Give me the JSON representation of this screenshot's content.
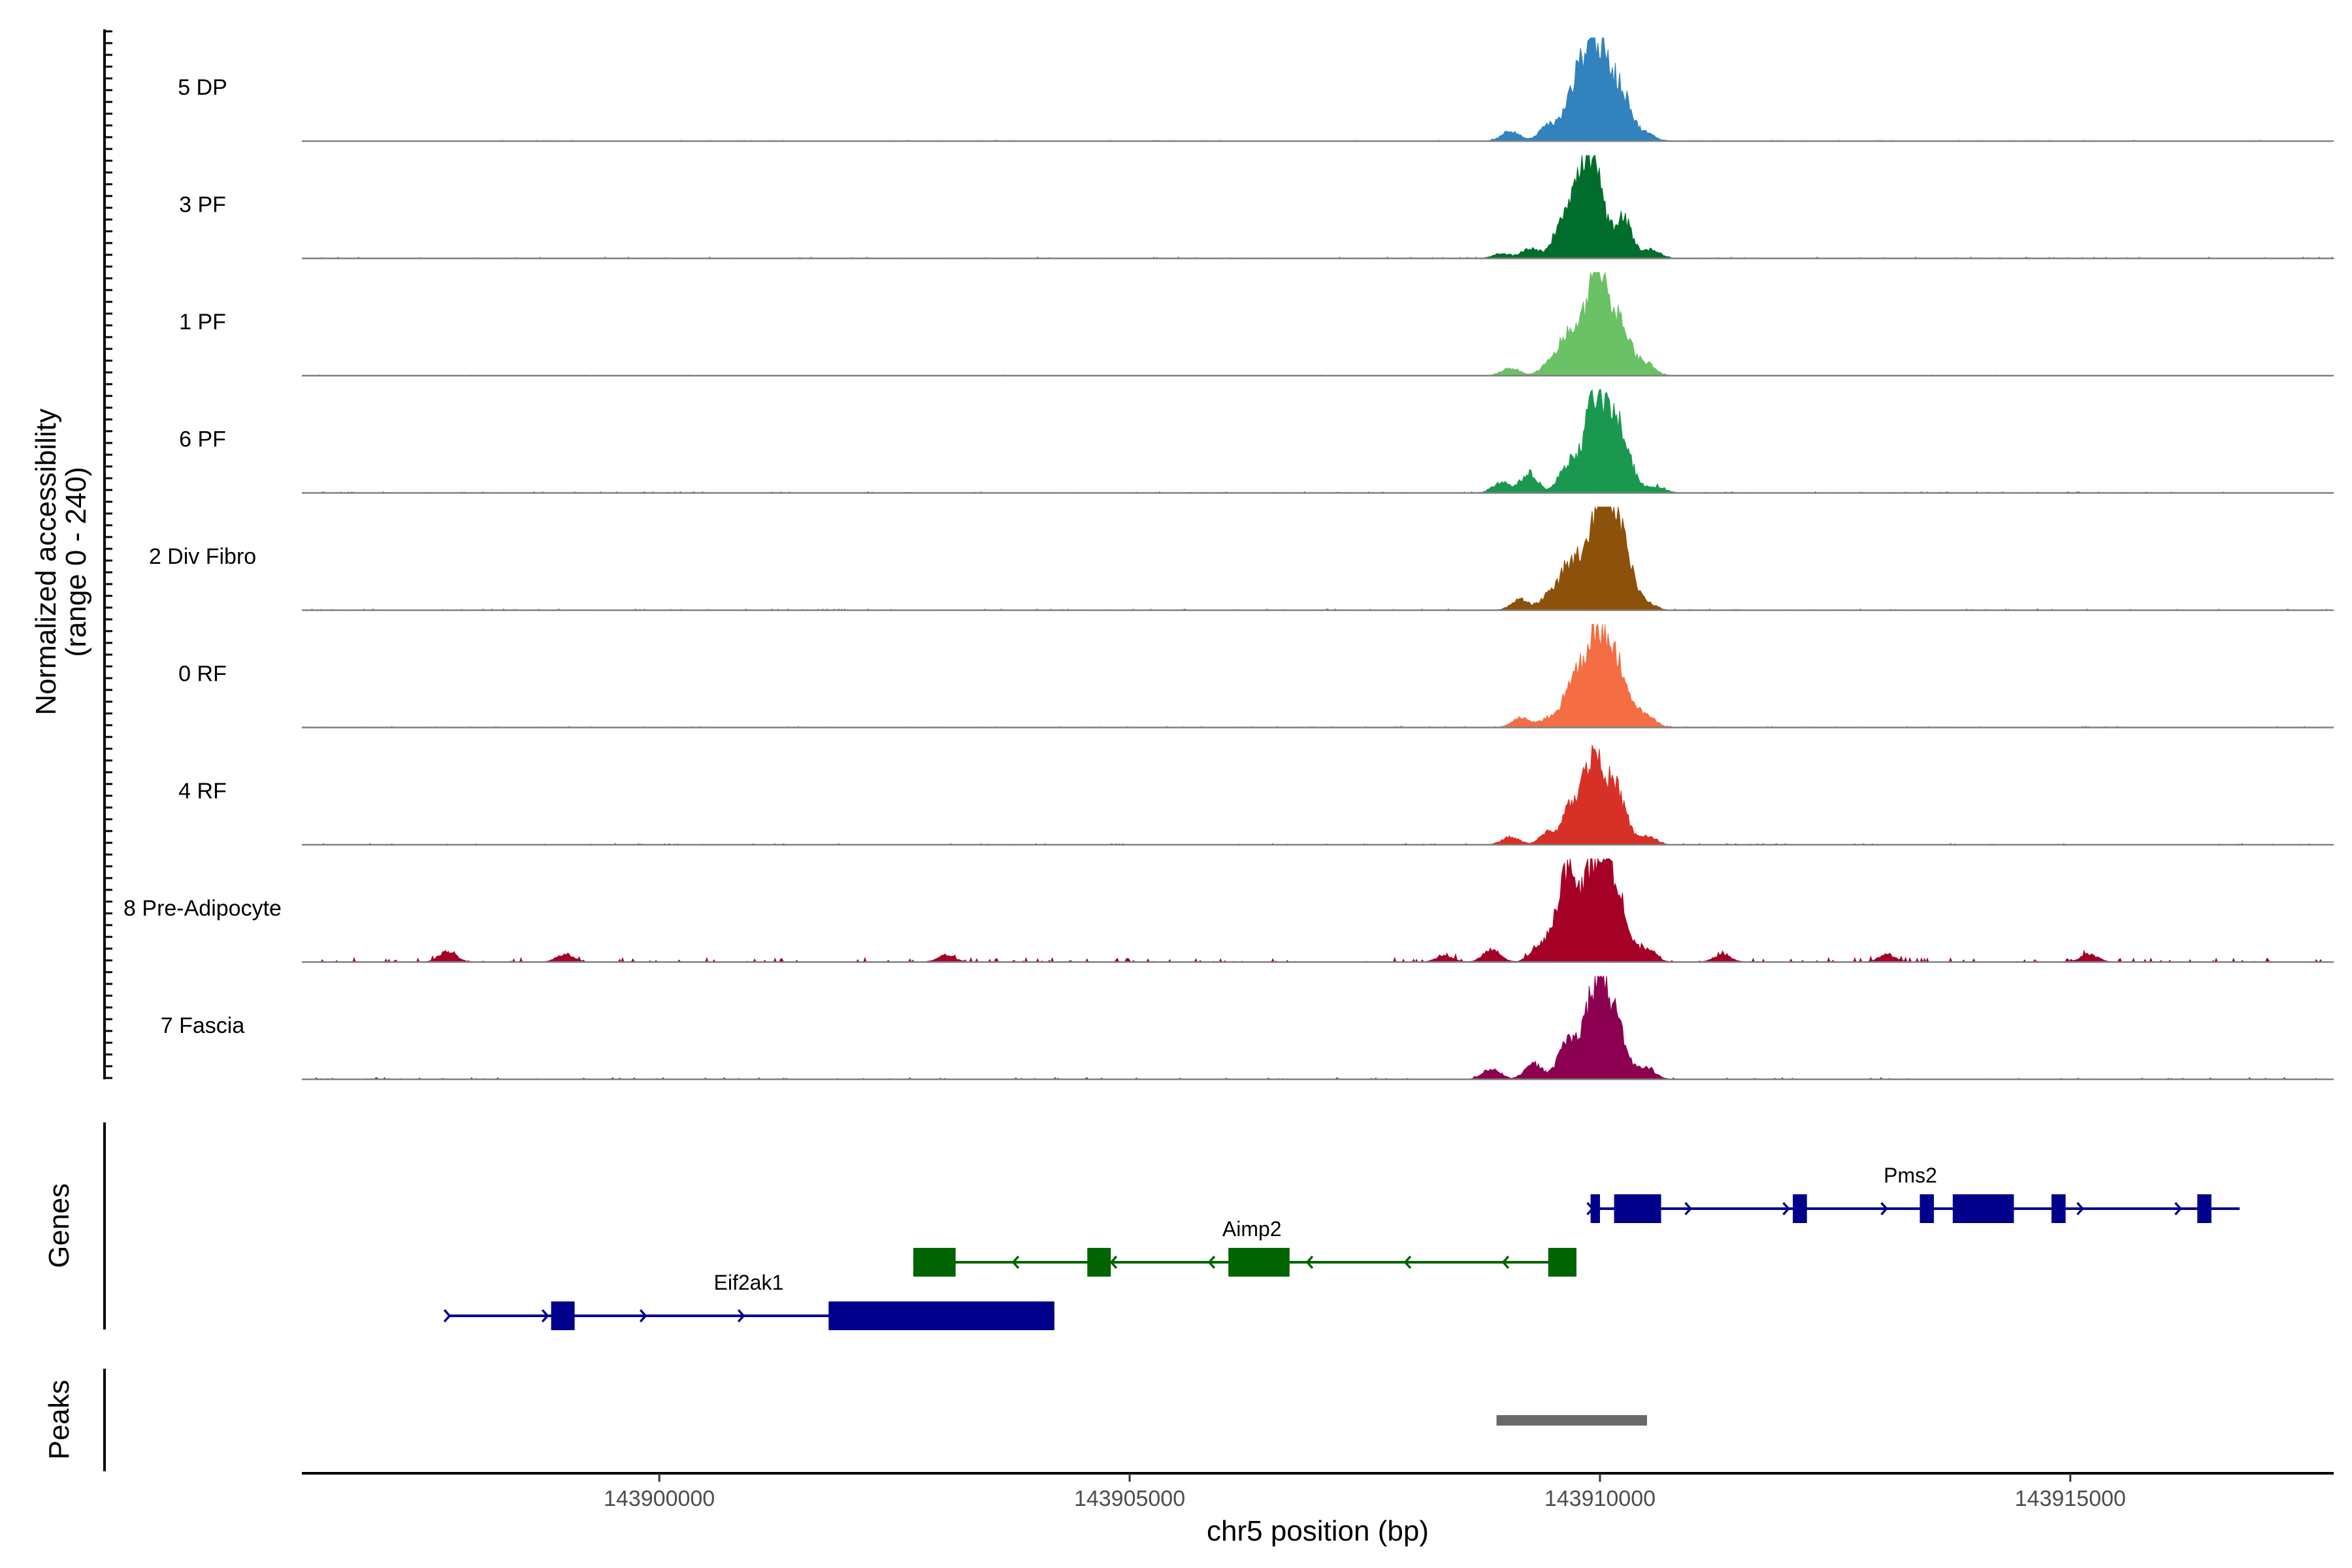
{
  "chart_data": {
    "type": "area",
    "title": "",
    "xlabel": "chr5 position (bp)",
    "ylabel_line1": "Normalized accessibility",
    "ylabel_line2": "(range 0 - 240)",
    "ylim": [
      0,
      240
    ],
    "xlim": [
      143896200,
      143917800
    ],
    "x_ticks": [
      143900000,
      143905000,
      143910000,
      143915000
    ],
    "x_tick_labels": [
      "143900000",
      "143905000",
      "143910000",
      "143915000"
    ],
    "tracks": [
      {
        "name": "5 DP",
        "color": "#3182BD",
        "peaks": [
          [
            143909050,
            25
          ],
          [
            143909450,
            35
          ],
          [
            143909750,
            110
          ],
          [
            143909950,
            200
          ],
          [
            143910200,
            120
          ],
          [
            143910500,
            15
          ]
        ],
        "noise": 2
      },
      {
        "name": "3 PF",
        "color": "#006D2C",
        "peaks": [
          [
            143908950,
            10
          ],
          [
            143909250,
            22
          ],
          [
            143909650,
            105
          ],
          [
            143909900,
            235
          ],
          [
            143910250,
            90
          ],
          [
            143910550,
            20
          ]
        ],
        "noise": 3
      },
      {
        "name": "1 PF",
        "color": "#6BC166",
        "peaks": [
          [
            143909050,
            18
          ],
          [
            143909450,
            24
          ],
          [
            143909650,
            90
          ],
          [
            143909950,
            230
          ],
          [
            143910200,
            120
          ],
          [
            143910500,
            25
          ]
        ],
        "noise": 2
      },
      {
        "name": "6 PF",
        "color": "#1A9850",
        "peaks": [
          [
            143908950,
            25
          ],
          [
            143909250,
            45
          ],
          [
            143909650,
            60
          ],
          [
            143909950,
            215
          ],
          [
            143910200,
            140
          ],
          [
            143910600,
            15
          ]
        ],
        "noise": 3
      },
      {
        "name": "2 Div Fibro",
        "color": "#8C510A",
        "peaks": [
          [
            143909150,
            25
          ],
          [
            143909450,
            28
          ],
          [
            143909700,
            110
          ],
          [
            143910000,
            230
          ],
          [
            143910200,
            175
          ],
          [
            143910500,
            15
          ]
        ],
        "noise": 3
      },
      {
        "name": "0 RF",
        "color": "#F46D43",
        "peaks": [
          [
            143909150,
            22
          ],
          [
            143909450,
            22
          ],
          [
            143909700,
            95
          ],
          [
            143909950,
            215
          ],
          [
            143910200,
            130
          ],
          [
            143910500,
            25
          ]
        ],
        "noise": 3
      },
      {
        "name": "4 RF",
        "color": "#D73027",
        "peaks": [
          [
            143909050,
            18
          ],
          [
            143909450,
            28
          ],
          [
            143909700,
            80
          ],
          [
            143909950,
            215
          ],
          [
            143910200,
            100
          ],
          [
            143910500,
            20
          ]
        ],
        "noise": 3
      },
      {
        "name": "8 Pre-Adipocyte",
        "color": "#A50026",
        "peaks": [
          [
            143897750,
            24
          ],
          [
            143899000,
            18
          ],
          [
            143903050,
            16
          ],
          [
            143908350,
            15
          ],
          [
            143908850,
            28
          ],
          [
            143909350,
            35
          ],
          [
            143909650,
            200
          ],
          [
            143909950,
            200
          ],
          [
            143910150,
            165
          ],
          [
            143910500,
            30
          ],
          [
            143911300,
            16
          ],
          [
            143913050,
            16
          ],
          [
            143915200,
            18
          ]
        ],
        "noise": 10
      },
      {
        "name": "7 Fascia",
        "color": "#8B0050",
        "peaks": [
          [
            143908850,
            25
          ],
          [
            143909300,
            35
          ],
          [
            143909650,
            85
          ],
          [
            143909950,
            200
          ],
          [
            143910150,
            120
          ],
          [
            143910500,
            25
          ]
        ],
        "noise": 4
      }
    ],
    "genes_panel_title": "Genes",
    "genes": [
      {
        "name": "Eif2ak1",
        "strand": "+",
        "color": "#00008B",
        "start": 143897750,
        "end": 143904200,
        "exons": [
          [
            143898850,
            143899100
          ],
          [
            143901800,
            143904200
          ]
        ]
      },
      {
        "name": "Aimp2",
        "strand": "-",
        "color": "#006400",
        "start": 143902700,
        "end": 143909750,
        "exons": [
          [
            143902700,
            143903150
          ],
          [
            143904550,
            143904800
          ],
          [
            143906050,
            143906700
          ],
          [
            143909450,
            143909750
          ]
        ]
      },
      {
        "name": "Pms2",
        "strand": "+",
        "color": "#00008B",
        "start": 143909900,
        "end": 143916800,
        "exons": [
          [
            143909900,
            143910000
          ],
          [
            143910150,
            143910650
          ],
          [
            143912050,
            143912200
          ],
          [
            143913400,
            143913550
          ],
          [
            143913750,
            143914400
          ],
          [
            143914800,
            143914950
          ],
          [
            143916350,
            143916500
          ]
        ]
      }
    ],
    "peaks_panel_title": "Peaks",
    "peak_regions": [
      [
        143908900,
        143910500
      ]
    ]
  }
}
